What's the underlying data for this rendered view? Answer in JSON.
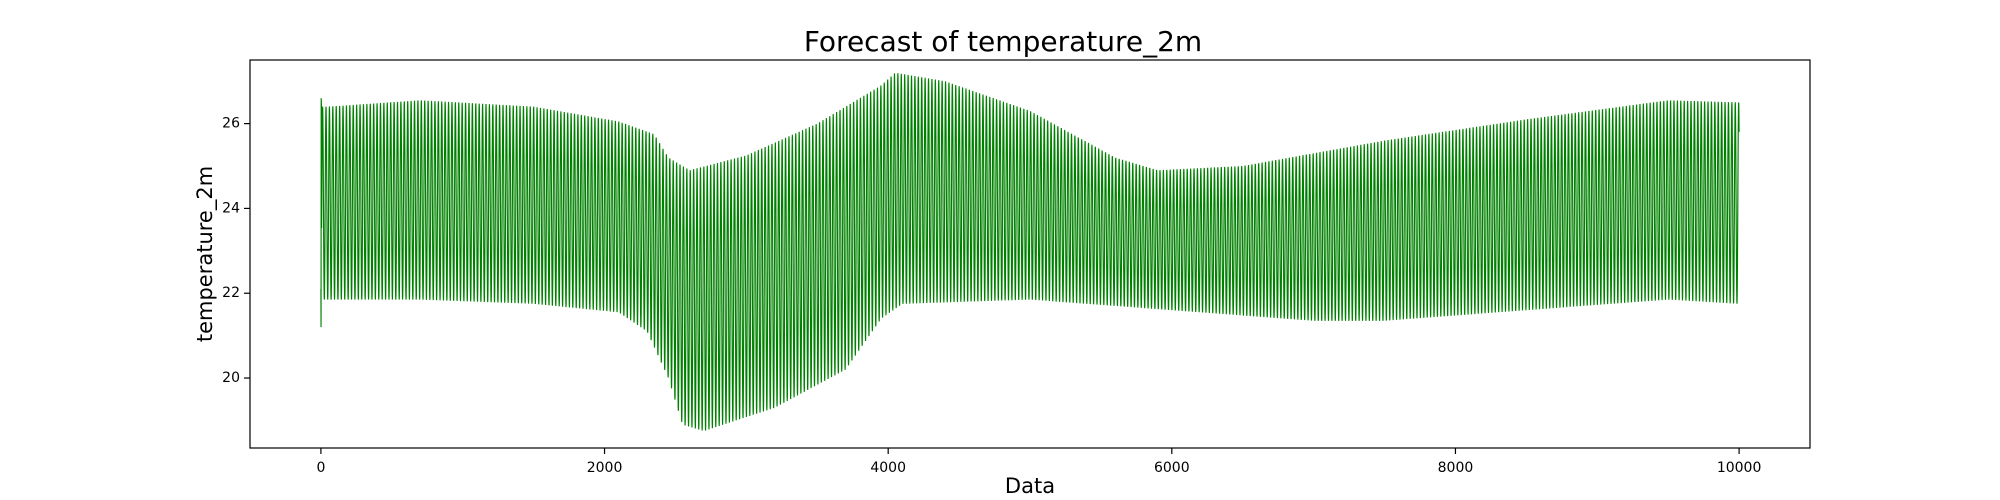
{
  "chart_data": {
    "type": "line",
    "title": "Forecast of temperature_2m",
    "xlabel": "Data",
    "ylabel": "temperature_2m",
    "xlim": [
      -500,
      10500
    ],
    "ylim": [
      18.35,
      27.5
    ],
    "x_ticks": [
      0,
      2000,
      4000,
      6000,
      8000,
      10000
    ],
    "x_tick_labels": [
      "0",
      "2000",
      "4000",
      "6000",
      "8000",
      "10000"
    ],
    "y_ticks": [
      20,
      22,
      24,
      26
    ],
    "y_tick_labels": [
      "20",
      "22",
      "24",
      "26"
    ],
    "grid": false,
    "legend": "none",
    "series": [
      {
        "color": "#008000",
        "x_start": 0,
        "x_end": 10000,
        "points": 10000,
        "cycle_period": 24,
        "initial_values": [
          22.1,
          21.2,
          26.6,
          26.5,
          26.4
        ],
        "upper_envelope": [
          [
            50,
            26.4
          ],
          [
            700,
            26.55
          ],
          [
            1500,
            26.4
          ],
          [
            2100,
            26.05
          ],
          [
            2350,
            25.75
          ],
          [
            2450,
            25.2
          ],
          [
            2600,
            24.9
          ],
          [
            3000,
            25.25
          ],
          [
            3500,
            26.0
          ],
          [
            3950,
            26.9
          ],
          [
            4050,
            27.2
          ],
          [
            4400,
            27.0
          ],
          [
            5000,
            26.3
          ],
          [
            5600,
            25.2
          ],
          [
            5900,
            24.9
          ],
          [
            6500,
            25.0
          ],
          [
            7500,
            25.6
          ],
          [
            8500,
            26.1
          ],
          [
            9500,
            26.55
          ],
          [
            10000,
            26.5
          ]
        ],
        "lower_envelope": [
          [
            50,
            21.85
          ],
          [
            700,
            21.85
          ],
          [
            1500,
            21.75
          ],
          [
            2100,
            21.55
          ],
          [
            2300,
            21.1
          ],
          [
            2450,
            20.0
          ],
          [
            2550,
            18.9
          ],
          [
            2700,
            18.75
          ],
          [
            3200,
            19.3
          ],
          [
            3700,
            20.2
          ],
          [
            3950,
            21.4
          ],
          [
            4100,
            21.75
          ],
          [
            5000,
            21.85
          ],
          [
            6000,
            21.6
          ],
          [
            7000,
            21.35
          ],
          [
            7500,
            21.35
          ],
          [
            8500,
            21.6
          ],
          [
            9500,
            21.85
          ],
          [
            10000,
            21.75
          ]
        ]
      }
    ]
  }
}
